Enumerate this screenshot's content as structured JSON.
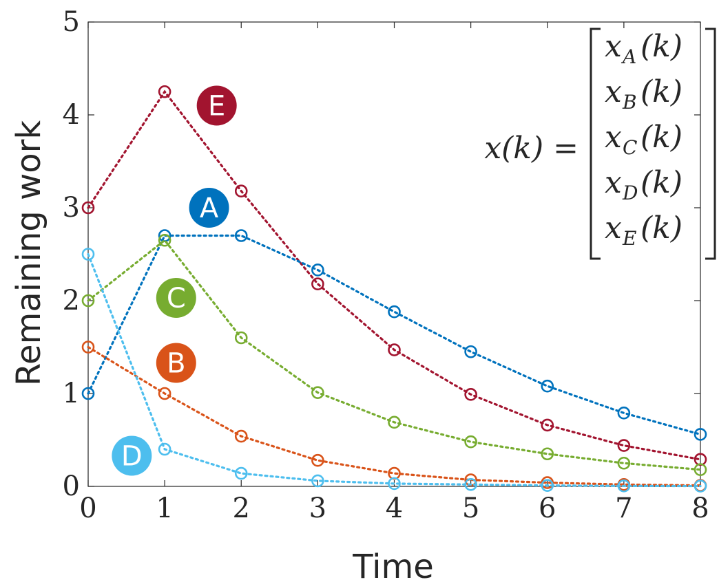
{
  "chart_data": {
    "type": "line",
    "xlabel": "Time",
    "ylabel": "Remaining work",
    "xlim": [
      0,
      8
    ],
    "ylim": [
      0,
      5
    ],
    "x_ticks": [
      "0",
      "1",
      "2",
      "3",
      "4",
      "5",
      "6",
      "7",
      "8"
    ],
    "y_ticks": [
      "0",
      "1",
      "2",
      "3",
      "4",
      "5"
    ],
    "grid": false,
    "marker": "circle",
    "line_style": "dotted",
    "x": [
      0,
      1,
      2,
      3,
      4,
      5,
      6,
      7,
      8
    ],
    "series": [
      {
        "label": "E",
        "color": "#A2142F",
        "label_pos": [
          1.68,
          4.1
        ],
        "values": [
          3.0,
          4.25,
          3.18,
          2.18,
          1.47,
          0.99,
          0.66,
          0.44,
          0.29
        ]
      },
      {
        "label": "A",
        "color": "#0072BD",
        "label_pos": [
          1.58,
          3.0
        ],
        "values": [
          1.0,
          2.7,
          2.7,
          2.33,
          1.88,
          1.45,
          1.08,
          0.79,
          0.56
        ]
      },
      {
        "label": "C",
        "color": "#77AC30",
        "label_pos": [
          1.15,
          2.03
        ],
        "values": [
          2.0,
          2.65,
          1.6,
          1.01,
          0.69,
          0.48,
          0.35,
          0.25,
          0.18
        ]
      },
      {
        "label": "B",
        "color": "#D95319",
        "label_pos": [
          1.15,
          1.33
        ],
        "values": [
          1.5,
          1.0,
          0.54,
          0.28,
          0.14,
          0.07,
          0.04,
          0.02,
          0.01
        ]
      },
      {
        "label": "D",
        "color": "#4DBEEE",
        "label_pos": [
          0.57,
          0.33
        ],
        "values": [
          2.5,
          0.4,
          0.14,
          0.06,
          0.03,
          0.02,
          0.01,
          0.005,
          0.003
        ]
      }
    ],
    "annotation": {
      "lhs": "x(k) =",
      "vector_entries": [
        {
          "base": "x",
          "sub": "A",
          "arg": "(k)"
        },
        {
          "base": "x",
          "sub": "B",
          "arg": "(k)"
        },
        {
          "base": "x",
          "sub": "C",
          "arg": "(k)"
        },
        {
          "base": "x",
          "sub": "D",
          "arg": "(k)"
        },
        {
          "base": "x",
          "sub": "E",
          "arg": "(k)"
        }
      ]
    }
  }
}
